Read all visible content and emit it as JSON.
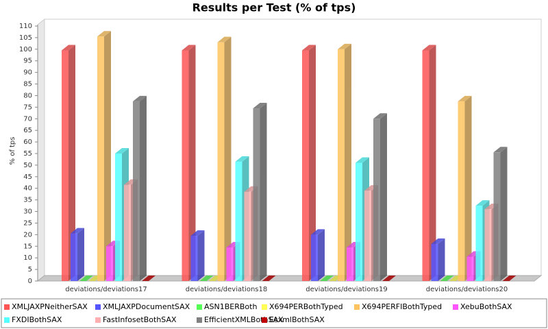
{
  "chart_data": {
    "type": "bar3d",
    "title": "Results per Test (% of tps)",
    "y_label": "% of tps",
    "categories": [
      "deviations/deviations17",
      "deviations/deviations18",
      "deviations/deviations19",
      "deviations/deviations20"
    ],
    "series": [
      {
        "name": "XMLJAXPNeitherSAX",
        "color": "#ff5555",
        "values": [
          99.5,
          99.5,
          99.5,
          99.5
        ]
      },
      {
        "name": "XMLJAXPDocumentSAX",
        "color": "#5555ff",
        "values": [
          20.5,
          19.5,
          20,
          16
        ]
      },
      {
        "name": "ASN1BERBoth",
        "color": "#55ff55",
        "values": [
          0,
          0,
          0,
          0
        ]
      },
      {
        "name": "X694PERBothTyped",
        "color": "#ffff55",
        "values": [
          0,
          0,
          0,
          0
        ]
      },
      {
        "name": "X694PERFIBothTyped",
        "color": "#ffc460",
        "values": [
          105.5,
          103,
          100,
          77.5
        ]
      },
      {
        "name": "XebuBothSAX",
        "color": "#ff55ff",
        "values": [
          15,
          14.5,
          14.5,
          10.5
        ]
      },
      {
        "name": "FXDIBothSAX",
        "color": "#55ffff",
        "values": [
          55,
          51.5,
          51,
          32.5
        ]
      },
      {
        "name": "FastInfosetBothSAX",
        "color": "#ffafaf",
        "values": [
          41.5,
          38.5,
          39,
          31
        ]
      },
      {
        "name": "EfficientXMLBothSAX",
        "color": "#808080",
        "values": [
          77.5,
          74.5,
          70,
          55.5
        ]
      },
      {
        "name": "EsxmlBothSAX",
        "color": "#c00000",
        "values": [
          0,
          0,
          0,
          0
        ]
      }
    ],
    "ylim": [
      0,
      110
    ],
    "yticks": [
      0,
      5,
      10,
      15,
      20,
      25,
      30,
      35,
      40,
      45,
      50,
      55,
      60,
      65,
      70,
      75,
      80,
      85,
      90,
      95,
      100,
      105,
      110
    ],
    "grid": false,
    "legend": "bottom"
  }
}
